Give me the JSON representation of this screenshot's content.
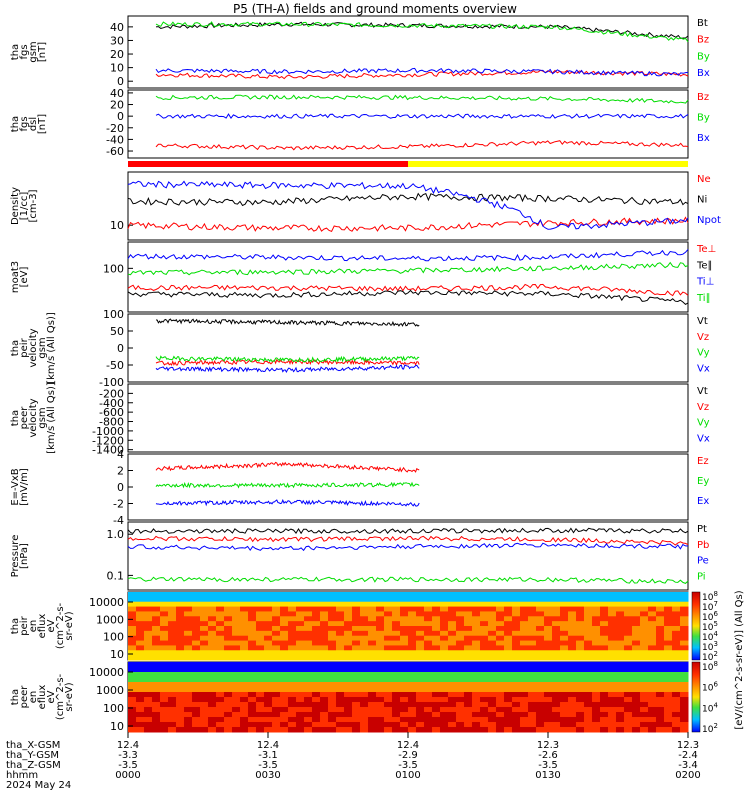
{
  "title": "P5 (TH-A) fields and ground moments overview",
  "footer": {
    "row_labels": [
      "tha_X-GSM",
      "tha_Y-GSM",
      "tha_Z-GSM",
      "hhmm",
      "2024 May 24"
    ],
    "columns": [
      [
        "12.4",
        "-3.3",
        "-3.5",
        "0000"
      ],
      [
        "12.4",
        "-3.1",
        "-3.5",
        "0030"
      ],
      [
        "12.4",
        "-2.9",
        "-3.5",
        "0100"
      ],
      [
        "12.3",
        "-2.6",
        "-3.5",
        "0130"
      ],
      [
        "12.3",
        "-2.4",
        "-3.4",
        "0200"
      ]
    ]
  },
  "colorbars": [
    {
      "label": "[eV/(cm^2-s-sr-eV)] (All Qs)",
      "ticks": [
        "10^8",
        "10^7",
        "10^6",
        "10^5",
        "10^4",
        "10^3",
        "10^2"
      ],
      "colors": [
        "#c80000",
        "#ff3000",
        "#ff9000",
        "#ffe000",
        "#40e040",
        "#00c0ff",
        "#0000ff"
      ]
    },
    {
      "label": "[eV/(cm^2-s-sr-eV)] (All Qs)",
      "ticks": [
        "10^8",
        "10^6",
        "10^4",
        "10^2"
      ],
      "colors": [
        "#c80000",
        "#ff3000",
        "#ff9000",
        "#ffe000",
        "#40e040",
        "#00c0ff",
        "#0000ff"
      ]
    }
  ],
  "status_bar": {
    "segments": [
      {
        "color": "#ff0000",
        "from": 0,
        "to": 0.5
      },
      {
        "color": "#ffff00",
        "from": 0.5,
        "to": 1
      }
    ]
  },
  "chart_data": [
    {
      "type": "line",
      "ylabel": "tha fgs gsm [nT]",
      "yticks": [
        "40",
        "30",
        "20",
        "10",
        "0"
      ],
      "yrange": [
        -5,
        48
      ],
      "x": [
        "0000",
        "0030",
        "0100",
        "0130",
        "0200"
      ],
      "series": [
        {
          "name": "Bt",
          "color": "#000000",
          "values": [
            40,
            42,
            41,
            40,
            32
          ]
        },
        {
          "name": "Bz",
          "color": "#ff0000",
          "values": [
            5,
            3,
            5,
            7,
            5
          ]
        },
        {
          "name": "By",
          "color": "#00dd00",
          "values": [
            42,
            42,
            41,
            40,
            30
          ]
        },
        {
          "name": "Bx",
          "color": "#0000ff",
          "values": [
            8,
            7,
            8,
            7,
            5
          ]
        }
      ]
    },
    {
      "type": "line",
      "ylabel": "tha fgs dsl [nT]",
      "yticks": [
        "40",
        "20",
        "0",
        "-20",
        "-40",
        "-60"
      ],
      "yrange": [
        -72,
        45
      ],
      "x": [
        "0000",
        "0030",
        "0100",
        "0130",
        "0200"
      ],
      "series": [
        {
          "name": "Bz",
          "color": "#ff0000",
          "values": [
            -50,
            -55,
            -52,
            -45,
            -50
          ]
        },
        {
          "name": "By",
          "color": "#00dd00",
          "values": [
            32,
            33,
            32,
            30,
            25
          ]
        },
        {
          "name": "Bx",
          "color": "#0000ff",
          "values": [
            0,
            0,
            0,
            0,
            0
          ]
        }
      ]
    },
    {
      "type": "line",
      "ylabel": "Density [1/cc] [cm-3]",
      "yticks": [
        "10"
      ],
      "log": true,
      "x": [
        "0000",
        "0030",
        "0100",
        "0130",
        "0200"
      ],
      "series": [
        {
          "name": "Ne",
          "color": "#ff0000",
          "values": [
            10,
            9,
            9,
            11,
            12
          ]
        },
        {
          "name": "Ni",
          "color": "#000000",
          "values": [
            25,
            24,
            30,
            28,
            24
          ]
        },
        {
          "name": "Npot",
          "color": "#0000ff",
          "values": [
            48,
            46,
            45,
            9,
            12
          ]
        }
      ]
    },
    {
      "type": "line",
      "ylabel": "moat3 [eV]",
      "yticks": [
        "100"
      ],
      "log": true,
      "x": [
        "0000",
        "0030",
        "0100",
        "0130",
        "0200"
      ],
      "series": [
        {
          "name": "Te⊥",
          "color": "#ff0000",
          "values": [
            40,
            40,
            38,
            42,
            30
          ]
        },
        {
          "name": "Te∥",
          "color": "#000000",
          "values": [
            30,
            28,
            32,
            30,
            20
          ]
        },
        {
          "name": "Ti⊥",
          "color": "#0000ff",
          "values": [
            180,
            170,
            160,
            170,
            220
          ]
        },
        {
          "name": "Ti∥",
          "color": "#00dd00",
          "values": [
            80,
            85,
            90,
            100,
            120
          ]
        }
      ]
    },
    {
      "type": "line",
      "ylabel": "tha peir velocity gsm [km/s (All Qs)]",
      "yticks": [
        "100",
        "50",
        "0",
        "-50",
        "-100"
      ],
      "yrange": [
        -100,
        100
      ],
      "x": [
        "0000",
        "0030",
        "0100"
      ],
      "series": [
        {
          "name": "Vt",
          "color": "#000000",
          "values": [
            80,
            75,
            70
          ]
        },
        {
          "name": "Vz",
          "color": "#ff0000",
          "values": [
            -45,
            -40,
            -45
          ]
        },
        {
          "name": "Vy",
          "color": "#00dd00",
          "values": [
            -30,
            -35,
            -30
          ]
        },
        {
          "name": "Vx",
          "color": "#0000ff",
          "values": [
            -60,
            -65,
            -55
          ]
        }
      ]
    },
    {
      "type": "line",
      "ylabel": "tha peer velocity gsm [km/s (All Qs)]",
      "yticks": [
        "-200",
        "-400",
        "-600",
        "-800",
        "-1000",
        "-1200",
        "-1400"
      ],
      "yrange": [
        -1450,
        0
      ],
      "series": [
        {
          "name": "Vt",
          "color": "#000000",
          "values": []
        },
        {
          "name": "Vz",
          "color": "#ff0000",
          "values": []
        },
        {
          "name": "Vy",
          "color": "#00dd00",
          "values": []
        },
        {
          "name": "Vx",
          "color": "#0000ff",
          "values": []
        }
      ]
    },
    {
      "type": "line",
      "ylabel": "E=-VxB [mV/m]",
      "yticks": [
        "4",
        "2",
        "0",
        "-2",
        "-4"
      ],
      "yrange": [
        -4,
        4
      ],
      "x": [
        "0000",
        "0030",
        "0100"
      ],
      "series": [
        {
          "name": "Ez",
          "color": "#ff0000",
          "values": [
            2.2,
            2.8,
            2.0
          ]
        },
        {
          "name": "Ey",
          "color": "#00dd00",
          "values": [
            0.2,
            0.2,
            0.3
          ]
        },
        {
          "name": "Ex",
          "color": "#0000ff",
          "values": [
            -2.0,
            -1.8,
            -2.1
          ]
        }
      ]
    },
    {
      "type": "line",
      "ylabel": "Pressure [nPa]",
      "yticks": [
        "1.0",
        "0.1"
      ],
      "log": true,
      "x": [
        "0000",
        "0030",
        "0100",
        "0130",
        "0200"
      ],
      "series": [
        {
          "name": "Pt",
          "color": "#000000",
          "values": [
            1.2,
            1.2,
            1.2,
            1.25,
            1.2
          ]
        },
        {
          "name": "Pb",
          "color": "#ff0000",
          "values": [
            0.8,
            0.75,
            0.8,
            0.75,
            0.6
          ]
        },
        {
          "name": "Pe",
          "color": "#0000ff",
          "values": [
            0.5,
            0.45,
            0.5,
            0.55,
            0.5
          ]
        },
        {
          "name": "Pi",
          "color": "#00dd00",
          "values": [
            0.08,
            0.08,
            0.08,
            0.08,
            0.07
          ]
        }
      ]
    },
    {
      "type": "heatmap",
      "ylabel": "tha peir en eflux eV [eV/(cm^2-s-sr-eV)]",
      "yticks": [
        "10000",
        "1000",
        "100",
        "10"
      ]
    },
    {
      "type": "heatmap",
      "ylabel": "tha peer en eflux eV [eV/(cm^2-s-sr-eV)]",
      "yticks": [
        "10000",
        "1000",
        "100",
        "10"
      ]
    }
  ]
}
